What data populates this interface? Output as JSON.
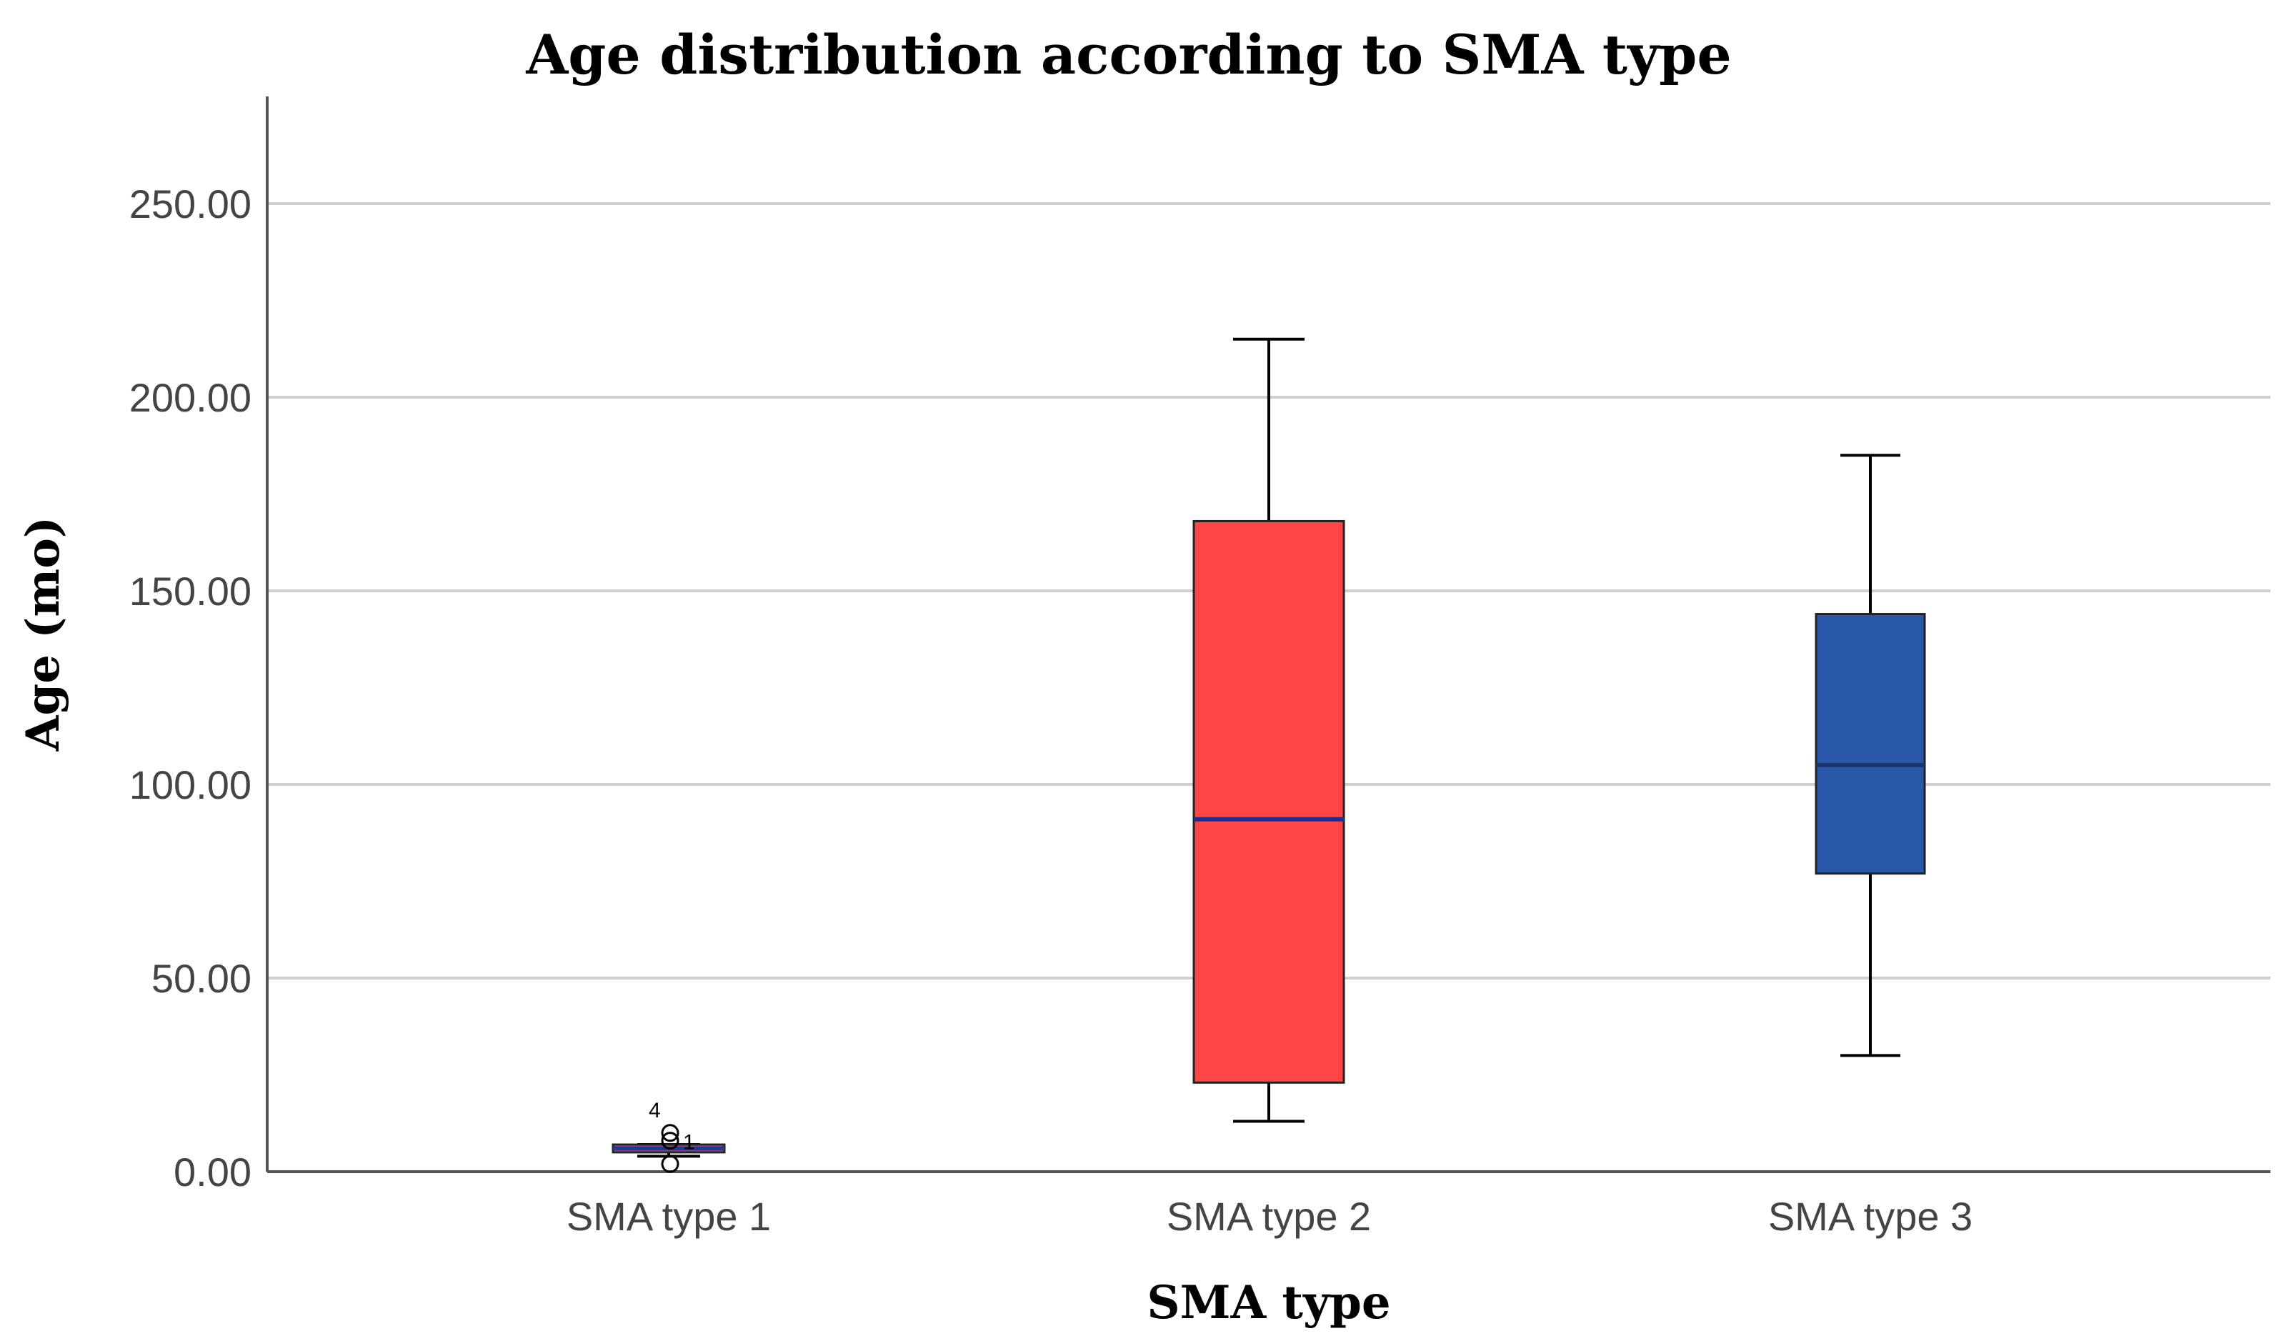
{
  "chart_data": {
    "type": "boxplot",
    "title": "Age distribution according to SMA type",
    "xlabel": "SMA type",
    "ylabel": "Age (mo)",
    "ylim": [
      0,
      275
    ],
    "yticks": [
      0,
      50,
      100,
      150,
      200,
      250
    ],
    "ytick_labels": [
      "0.00",
      "50.00",
      "100.00",
      "150.00",
      "200.00",
      "250.00"
    ],
    "grid": true,
    "categories": [
      "SMA type 1",
      "SMA type 2",
      "SMA type 3"
    ],
    "boxes": [
      {
        "name": "SMA type 1",
        "whisker_low": 4,
        "q1": 5,
        "median": 6,
        "q3": 7,
        "whisker_high": 7,
        "box_color": "#f0506a",
        "median_color": "#1a3a9c",
        "outliers": [
          {
            "value": 10,
            "label": "4"
          },
          {
            "value": 8,
            "label": "1"
          },
          {
            "value": 2,
            "label": ""
          }
        ]
      },
      {
        "name": "SMA type 2",
        "whisker_low": 13,
        "q1": 23,
        "median": 91,
        "q3": 168,
        "whisker_high": 215,
        "box_color": "#ff4646",
        "median_color": "#1a2f8f",
        "outliers": []
      },
      {
        "name": "SMA type 3",
        "whisker_low": 30,
        "q1": 77,
        "median": 105,
        "q3": 144,
        "whisker_high": 185,
        "box_color": "#2a58a8",
        "median_color": "#1c3470",
        "outliers": []
      }
    ]
  }
}
